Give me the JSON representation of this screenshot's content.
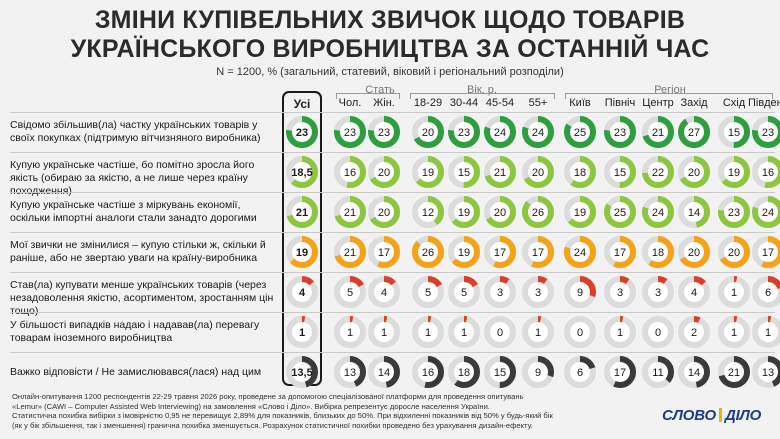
{
  "title_line1": "ЗМІНИ КУПІВЕЛЬНИХ ЗВИЧОК ЩОДО ТОВАРІВ",
  "title_line2": "УКРАЇНСЬКОГО ВИРОБНИЦТВА ЗА ОСТАННІЙ ЧАС",
  "subtitle": "N = 1200, % (загальний, статевий, віковий і регіональний розподіли)",
  "groups": {
    "sex": "Стать",
    "age": "Вік, р.",
    "region": "Регіон"
  },
  "footnote": [
    "Онлайн-опитування 1200 респондентів 22-29 травня 2026 року, проведене за допомогою спеціалізованої платформи для проведення опитувань",
    "«Lemur» (CAWI – Computer Assisted Web Interviewing) на замовлення «Слово і Діло». Вибірка репрезентує доросле населення України.",
    "Статистична похибка вибірки з імовірністю 0,95 не перевищує 2,89% для показників, близьких до 50%. При відхиленні показників від 50% у будь-який бік",
    "(як у бік збільшення, так і зменшення) гранична похибка зменшується. Розрахунок статистичної похибки проведено без урахування дизайн-ефекту."
  ],
  "logo": {
    "left": "СЛОВО",
    "right": "ДІЛО"
  },
  "colors": {
    "green": "#2e9e3e",
    "lightgreen": "#8dc63f",
    "orange": "#f5a21b",
    "red": "#d8402b",
    "darkgray": "#3a3a3a",
    "track": "#dcdcdc"
  },
  "chart_data": {
    "type": "table",
    "columns": [
      "Усі",
      "Чол.",
      "Жін.",
      "18-29",
      "30-44",
      "45-54",
      "55+",
      "Київ",
      "Північ",
      "Центр",
      "Захід",
      "Схід",
      "Південь"
    ],
    "rows": [
      {
        "label": "Свідомо збільшив(ла) частку українських товарів у своїх покупках (підтримую вітчизняного виробника)",
        "color": "green",
        "values": [
          "23",
          "23",
          "23",
          "20",
          "23",
          "24",
          "24",
          "25",
          "23",
          "21",
          "27",
          "15",
          "23"
        ]
      },
      {
        "label": "Купую українське частіше, бо помітно зросла його якість (обираю за якістю, а не лише через країну походження)",
        "color": "lightgreen",
        "values": [
          "18,5",
          "16",
          "20",
          "19",
          "15",
          "21",
          "20",
          "18",
          "15",
          "22",
          "20",
          "19",
          "16"
        ]
      },
      {
        "label": "Купую українське частіше з міркувань економії, оскільки імпортні аналоги стали занадто дорогими",
        "color": "lightgreen",
        "values": [
          "21",
          "21",
          "20",
          "12",
          "19",
          "20",
          "26",
          "19",
          "25",
          "24",
          "14",
          "23",
          "24"
        ]
      },
      {
        "label": "Мої звички не змінилися – купую стільки ж, скільки й раніше, або не звертаю уваги на країну-виробника",
        "color": "orange",
        "values": [
          "19",
          "21",
          "17",
          "26",
          "19",
          "17",
          "17",
          "24",
          "17",
          "18",
          "20",
          "20",
          "17"
        ]
      },
      {
        "label": "Став(ла) купувати менше українських товарів (через незадоволення якістю, асортиментом, зростанням цін тощо)",
        "color": "red",
        "values": [
          "4",
          "5",
          "4",
          "5",
          "5",
          "3",
          "3",
          "9",
          "3",
          "3",
          "4",
          "1",
          "6"
        ]
      },
      {
        "label": "У більшості випадків надаю і надавав(ла) перевагу товарам іноземного виробництва",
        "color": "red",
        "values": [
          "1",
          "1",
          "1",
          "1",
          "1",
          "0",
          "1",
          "0",
          "1",
          "0",
          "2",
          "1",
          "1"
        ]
      },
      {
        "label": "Важко відповісти / Не замислювався(лася) над цим",
        "color": "darkgray",
        "values": [
          "13,5",
          "13",
          "14",
          "16",
          "18",
          "15",
          "9",
          "6",
          "17",
          "11",
          "14",
          "21",
          "13"
        ]
      }
    ]
  }
}
